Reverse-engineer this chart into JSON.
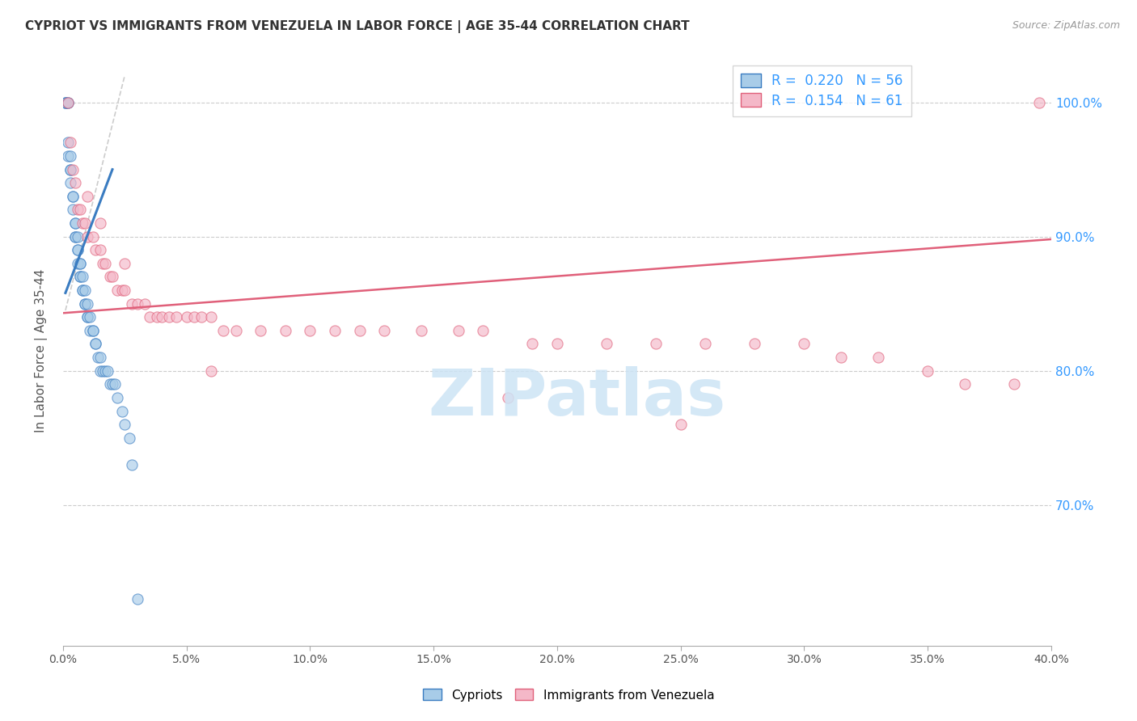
{
  "title": "CYPRIOT VS IMMIGRANTS FROM VENEZUELA IN LABOR FORCE | AGE 35-44 CORRELATION CHART",
  "source": "Source: ZipAtlas.com",
  "ylabel": "In Labor Force | Age 35-44",
  "legend_bottom": [
    "Cypriots",
    "Immigrants from Venezuela"
  ],
  "R_blue": 0.22,
  "N_blue": 56,
  "R_pink": 0.154,
  "N_pink": 61,
  "blue_color": "#a8cce8",
  "pink_color": "#f4b8c8",
  "blue_line_color": "#3a7cc1",
  "pink_line_color": "#e0607a",
  "right_axis_color": "#3399ff",
  "watermark_color": "#cde4f5",
  "x_min": 0.0,
  "x_max": 0.4,
  "y_min": 0.595,
  "y_max": 1.035,
  "blue_scatter_x": [
    0.001,
    0.001,
    0.001,
    0.002,
    0.002,
    0.002,
    0.002,
    0.003,
    0.003,
    0.003,
    0.003,
    0.004,
    0.004,
    0.004,
    0.005,
    0.005,
    0.005,
    0.005,
    0.006,
    0.006,
    0.006,
    0.006,
    0.007,
    0.007,
    0.007,
    0.007,
    0.008,
    0.008,
    0.008,
    0.009,
    0.009,
    0.009,
    0.01,
    0.01,
    0.01,
    0.011,
    0.011,
    0.012,
    0.012,
    0.013,
    0.013,
    0.014,
    0.015,
    0.015,
    0.016,
    0.017,
    0.018,
    0.019,
    0.02,
    0.021,
    0.022,
    0.024,
    0.025,
    0.027,
    0.028,
    0.03
  ],
  "blue_scatter_y": [
    1.0,
    1.0,
    1.0,
    1.0,
    1.0,
    0.97,
    0.96,
    0.96,
    0.95,
    0.95,
    0.94,
    0.93,
    0.93,
    0.92,
    0.91,
    0.91,
    0.9,
    0.9,
    0.9,
    0.89,
    0.89,
    0.88,
    0.88,
    0.88,
    0.87,
    0.87,
    0.87,
    0.86,
    0.86,
    0.86,
    0.85,
    0.85,
    0.85,
    0.84,
    0.84,
    0.84,
    0.83,
    0.83,
    0.83,
    0.82,
    0.82,
    0.81,
    0.81,
    0.8,
    0.8,
    0.8,
    0.8,
    0.79,
    0.79,
    0.79,
    0.78,
    0.77,
    0.76,
    0.75,
    0.73,
    0.63
  ],
  "pink_scatter_x": [
    0.002,
    0.003,
    0.004,
    0.005,
    0.006,
    0.007,
    0.008,
    0.009,
    0.01,
    0.012,
    0.013,
    0.015,
    0.016,
    0.017,
    0.019,
    0.02,
    0.022,
    0.024,
    0.025,
    0.028,
    0.03,
    0.033,
    0.035,
    0.038,
    0.04,
    0.043,
    0.046,
    0.05,
    0.053,
    0.056,
    0.06,
    0.065,
    0.07,
    0.08,
    0.09,
    0.1,
    0.11,
    0.12,
    0.13,
    0.145,
    0.16,
    0.17,
    0.19,
    0.2,
    0.22,
    0.24,
    0.26,
    0.28,
    0.3,
    0.315,
    0.33,
    0.35,
    0.365,
    0.385,
    0.01,
    0.015,
    0.025,
    0.06,
    0.18,
    0.25,
    0.395
  ],
  "pink_scatter_y": [
    1.0,
    0.97,
    0.95,
    0.94,
    0.92,
    0.92,
    0.91,
    0.91,
    0.9,
    0.9,
    0.89,
    0.89,
    0.88,
    0.88,
    0.87,
    0.87,
    0.86,
    0.86,
    0.86,
    0.85,
    0.85,
    0.85,
    0.84,
    0.84,
    0.84,
    0.84,
    0.84,
    0.84,
    0.84,
    0.84,
    0.84,
    0.83,
    0.83,
    0.83,
    0.83,
    0.83,
    0.83,
    0.83,
    0.83,
    0.83,
    0.83,
    0.83,
    0.82,
    0.82,
    0.82,
    0.82,
    0.82,
    0.82,
    0.82,
    0.81,
    0.81,
    0.8,
    0.79,
    0.79,
    0.93,
    0.91,
    0.88,
    0.8,
    0.78,
    0.76,
    1.0
  ],
  "blue_line_x": [
    0.001,
    0.02
  ],
  "blue_line_y": [
    0.858,
    0.95
  ],
  "pink_line_x": [
    0.0,
    0.4
  ],
  "pink_line_y": [
    0.843,
    0.898
  ],
  "ref_line_x": [
    0.001,
    0.025
  ],
  "ref_line_y": [
    0.845,
    1.02
  ]
}
